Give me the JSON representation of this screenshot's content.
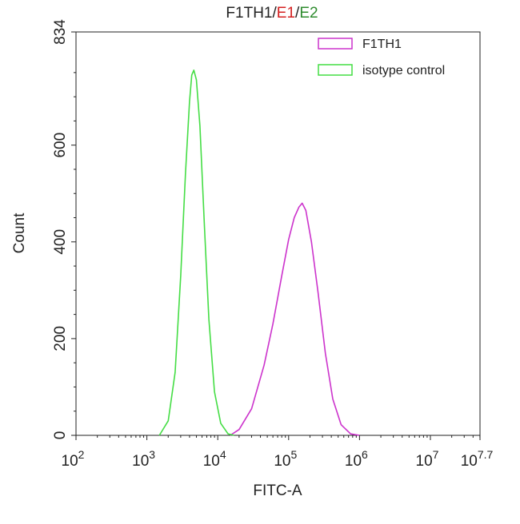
{
  "chart_data": {
    "type": "line",
    "title_parts": [
      {
        "text": "F1TH1",
        "color": "#222222"
      },
      {
        "text": "/",
        "color": "#222222"
      },
      {
        "text": "E1",
        "color": "#d42020"
      },
      {
        "text": "/",
        "color": "#222222"
      },
      {
        "text": "E2",
        "color": "#2e8b2e"
      }
    ],
    "xlabel": "FITC-A",
    "ylabel": "Count",
    "x_scale": "log10",
    "xlim": [
      100,
      50118723
    ],
    "ylim": [
      0,
      834
    ],
    "x_ticks": [
      {
        "value": 100,
        "base": "10",
        "exp": "2"
      },
      {
        "value": 1000,
        "base": "10",
        "exp": "3"
      },
      {
        "value": 10000,
        "base": "10",
        "exp": "4"
      },
      {
        "value": 100000,
        "base": "10",
        "exp": "5"
      },
      {
        "value": 1000000,
        "base": "10",
        "exp": "6"
      },
      {
        "value": 10000000,
        "base": "10",
        "exp": "7"
      },
      {
        "value": 50118723,
        "base": "10",
        "exp": "7.7"
      }
    ],
    "y_ticks": [
      0,
      200,
      400,
      600,
      834
    ],
    "grid": false,
    "legend_position": "top-right",
    "series": [
      {
        "name": "F1TH1",
        "color": "#cc33cc",
        "x": [
          15000,
          20000,
          30000,
          45000,
          60000,
          80000,
          100000,
          120000,
          140000,
          155000,
          175000,
          210000,
          260000,
          330000,
          420000,
          550000,
          750000,
          1000000
        ],
        "y": [
          0,
          12,
          55,
          145,
          230,
          330,
          405,
          450,
          472,
          480,
          465,
          400,
          295,
          170,
          75,
          22,
          3,
          0
        ]
      },
      {
        "name": "isotype control",
        "color": "#44dd44",
        "x": [
          1500,
          2000,
          2500,
          3000,
          3500,
          4000,
          4300,
          4600,
          5000,
          5600,
          6500,
          7500,
          9000,
          11000,
          14000,
          17000
        ],
        "y": [
          0,
          30,
          130,
          330,
          540,
          690,
          745,
          755,
          735,
          640,
          430,
          240,
          90,
          25,
          3,
          0
        ]
      }
    ]
  }
}
